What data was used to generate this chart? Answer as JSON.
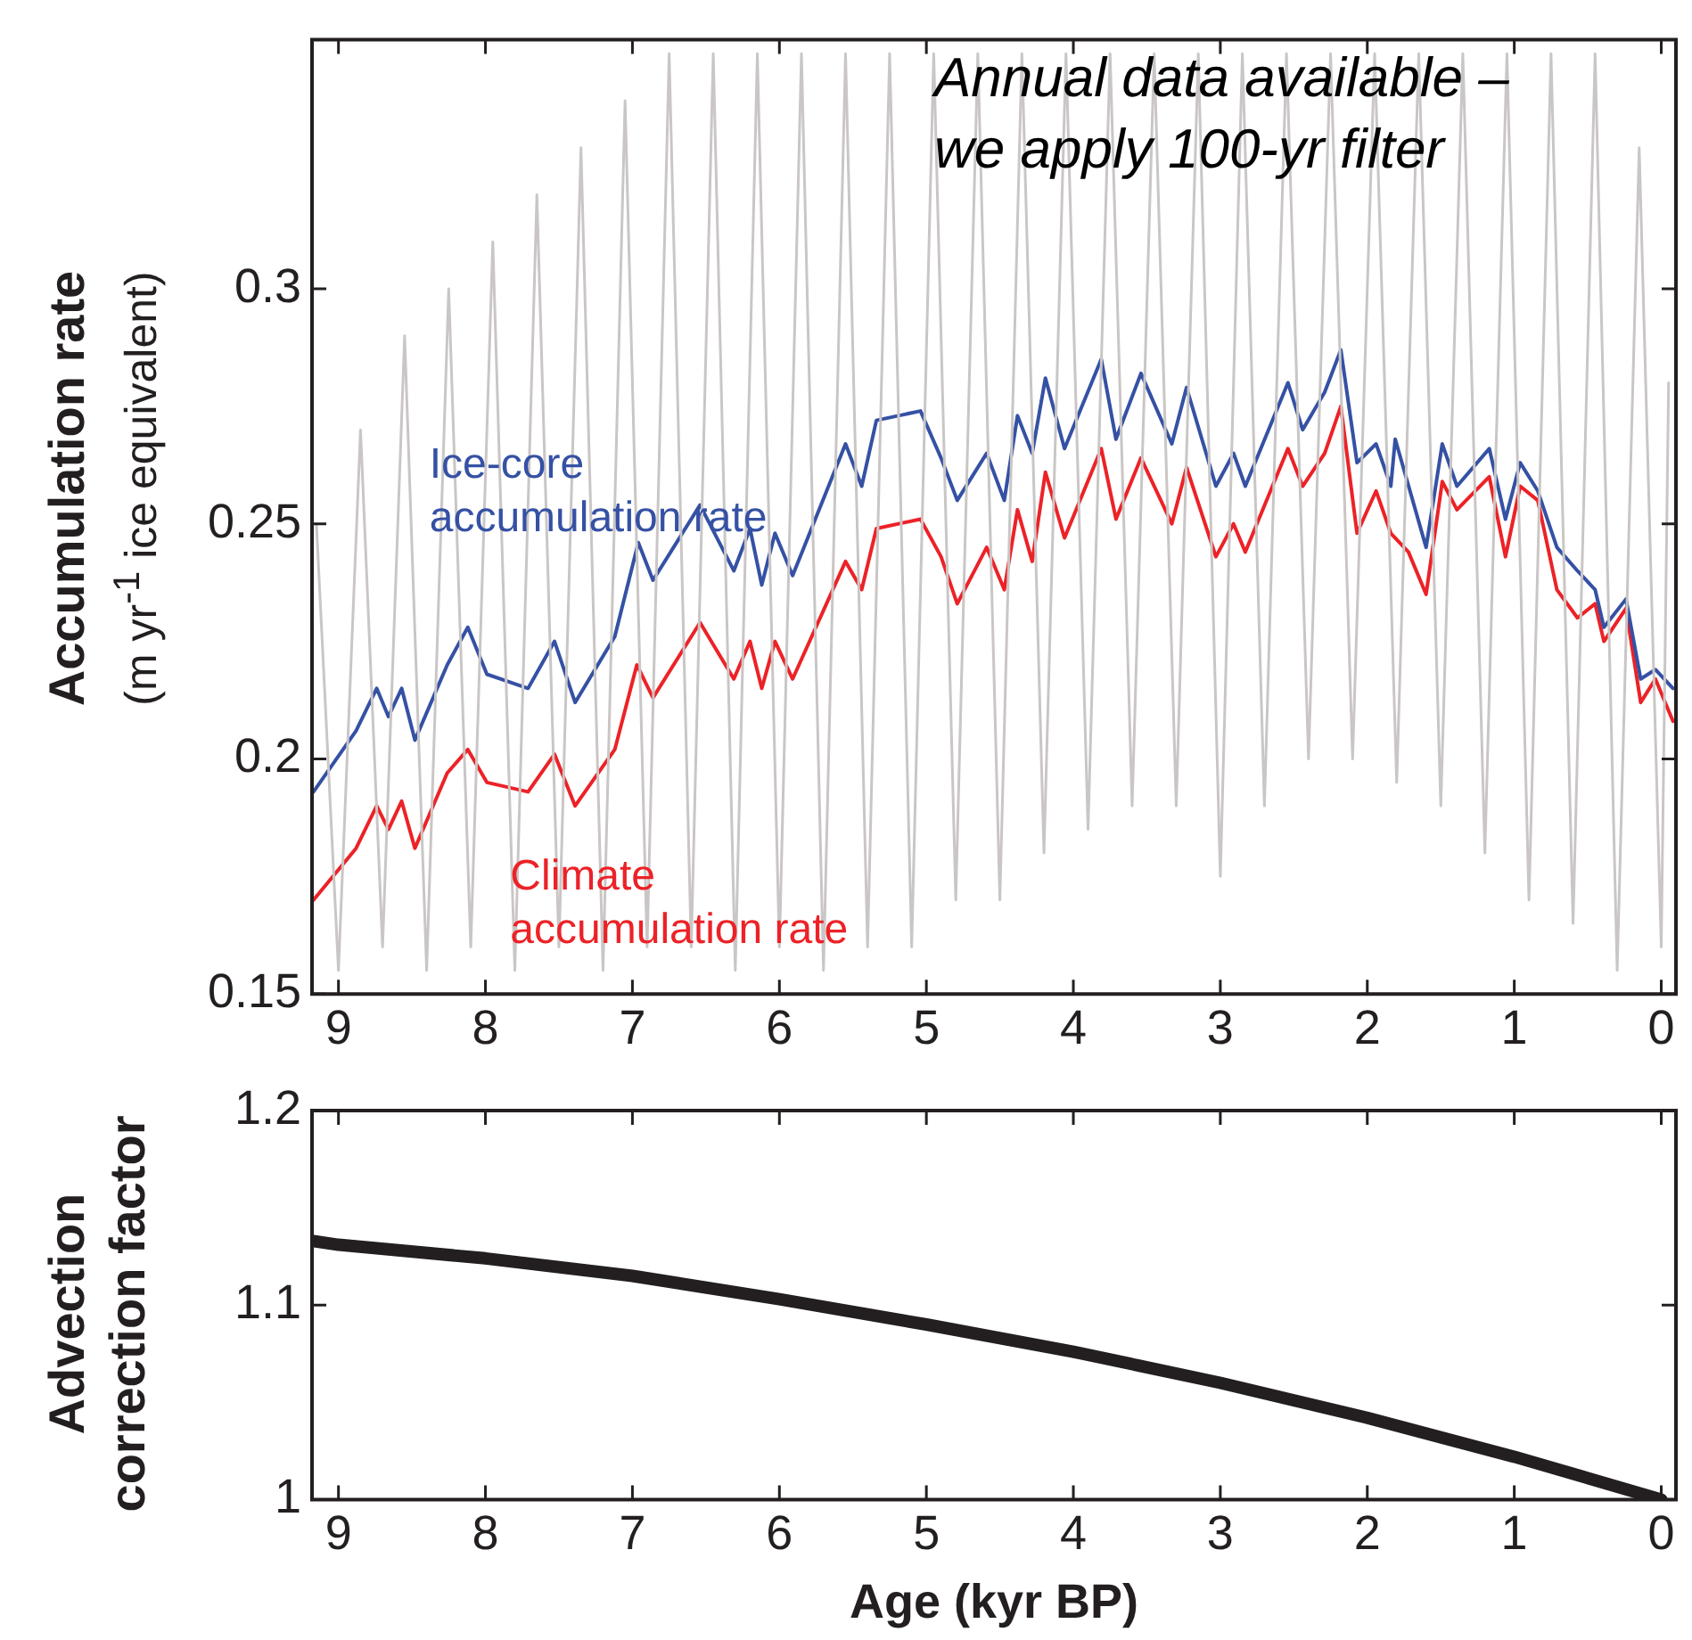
{
  "chart_data": [
    {
      "type": "line",
      "ylabel": "Accumulation rate\n(m yr$^{-1}$ ice equivalent)",
      "annotations": [
        "Annual data available –\nwe apply 100-yr filter"
      ],
      "xlim": [
        9.18,
        -0.1
      ],
      "xticks": [
        9,
        8,
        7,
        6,
        5,
        4,
        3,
        2,
        1,
        0
      ],
      "ylim": [
        0.15,
        0.353
      ],
      "yticks": [
        0.15,
        {
          "value": 0.2,
          "label": "0.2"
        },
        0.25,
        {
          "value": 0.3,
          "label": "0.3"
        }
      ],
      "marker": "none",
      "series": [
        {
          "color": "#cac6c5",
          "x": [
            9.15,
            9.0,
            8.85,
            8.7,
            8.55,
            8.4,
            8.25,
            8.1,
            7.95,
            7.8,
            7.65,
            7.5,
            7.35,
            7.2,
            7.05,
            6.9,
            6.75,
            6.6,
            6.45,
            6.3,
            6.15,
            6.0,
            5.85,
            5.7,
            5.55,
            5.4,
            5.25,
            5.1,
            4.95,
            4.8,
            4.65,
            4.5,
            4.35,
            4.2,
            4.05,
            3.9,
            3.75,
            3.6,
            3.45,
            3.3,
            3.15,
            3.0,
            2.85,
            2.7,
            2.55,
            2.4,
            2.25,
            2.1,
            1.95,
            1.8,
            1.65,
            1.5,
            1.35,
            1.2,
            1.05,
            0.9,
            0.75,
            0.6,
            0.45,
            0.3,
            0.15,
            0.0,
            -0.05
          ],
          "values": [
            0.25,
            0.155,
            0.27,
            0.16,
            0.29,
            0.155,
            0.3,
            0.16,
            0.31,
            0.155,
            0.32,
            0.16,
            0.33,
            0.155,
            0.34,
            0.16,
            0.35,
            0.16,
            0.35,
            0.155,
            0.35,
            0.16,
            0.35,
            0.155,
            0.35,
            0.16,
            0.35,
            0.16,
            0.35,
            0.17,
            0.35,
            0.17,
            0.35,
            0.18,
            0.35,
            0.185,
            0.35,
            0.19,
            0.35,
            0.19,
            0.35,
            0.175,
            0.35,
            0.19,
            0.35,
            0.2,
            0.35,
            0.2,
            0.35,
            0.195,
            0.35,
            0.19,
            0.35,
            0.18,
            0.35,
            0.17,
            0.35,
            0.165,
            0.35,
            0.155,
            0.33,
            0.16,
            0.28
          ]
        },
        {
          "name": "Ice-core accumulation rate",
          "color": "#3551a4",
          "x": [
            9.17,
            8.88,
            8.74,
            8.66,
            8.57,
            8.48,
            8.26,
            8.12,
            7.99,
            7.71,
            7.53,
            7.39,
            7.12,
            6.96,
            6.86,
            6.54,
            6.31,
            6.2,
            6.12,
            6.03,
            5.91,
            5.55,
            5.44,
            5.34,
            5.04,
            4.9,
            4.79,
            4.59,
            4.47,
            4.38,
            4.28,
            4.19,
            4.06,
            3.81,
            3.71,
            3.54,
            3.33,
            3.23,
            3.03,
            2.91,
            2.83,
            2.54,
            2.44,
            2.29,
            2.18,
            2.07,
            1.94,
            1.84,
            1.81,
            1.6,
            1.49,
            1.39,
            1.17,
            1.06,
            0.96,
            0.84,
            0.71,
            0.57,
            0.45,
            0.39,
            0.24,
            0.14,
            0.04,
            -0.08
          ],
          "values": [
            0.193,
            0.206,
            0.215,
            0.209,
            0.215,
            0.204,
            0.22,
            0.228,
            0.218,
            0.215,
            0.225,
            0.212,
            0.226,
            0.246,
            0.238,
            0.254,
            0.24,
            0.249,
            0.237,
            0.248,
            0.239,
            0.267,
            0.258,
            0.272,
            0.274,
            0.264,
            0.255,
            0.265,
            0.255,
            0.273,
            0.265,
            0.281,
            0.266,
            0.285,
            0.268,
            0.282,
            0.267,
            0.279,
            0.258,
            0.265,
            0.258,
            0.28,
            0.27,
            0.278,
            0.287,
            0.263,
            0.267,
            0.258,
            0.268,
            0.245,
            0.267,
            0.258,
            0.266,
            0.251,
            0.263,
            0.257,
            0.245,
            0.24,
            0.236,
            0.228,
            0.234,
            0.217,
            0.219,
            0.215
          ]
        },
        {
          "name": "Climate accumulation rate",
          "color": "#ec2227",
          "x": [
            9.17,
            8.88,
            8.74,
            8.66,
            8.57,
            8.48,
            8.26,
            8.12,
            7.99,
            7.71,
            7.53,
            7.39,
            7.12,
            6.97,
            6.86,
            6.54,
            6.31,
            6.2,
            6.12,
            6.03,
            5.91,
            5.55,
            5.44,
            5.34,
            5.04,
            4.9,
            4.79,
            4.59,
            4.47,
            4.38,
            4.28,
            4.19,
            4.06,
            3.81,
            3.71,
            3.54,
            3.33,
            3.23,
            3.03,
            2.91,
            2.83,
            2.54,
            2.44,
            2.29,
            2.18,
            2.07,
            1.94,
            1.84,
            1.72,
            1.6,
            1.49,
            1.39,
            1.17,
            1.06,
            0.96,
            0.84,
            0.71,
            0.57,
            0.45,
            0.39,
            0.24,
            0.14,
            0.04,
            -0.08
          ],
          "values": [
            0.17,
            0.181,
            0.19,
            0.185,
            0.191,
            0.181,
            0.197,
            0.202,
            0.195,
            0.193,
            0.201,
            0.19,
            0.202,
            0.22,
            0.213,
            0.229,
            0.217,
            0.225,
            0.215,
            0.225,
            0.217,
            0.242,
            0.236,
            0.249,
            0.251,
            0.243,
            0.233,
            0.245,
            0.236,
            0.253,
            0.242,
            0.261,
            0.247,
            0.266,
            0.251,
            0.264,
            0.25,
            0.262,
            0.243,
            0.25,
            0.244,
            0.266,
            0.258,
            0.265,
            0.275,
            0.248,
            0.257,
            0.248,
            0.244,
            0.235,
            0.259,
            0.253,
            0.26,
            0.243,
            0.258,
            0.255,
            0.236,
            0.23,
            0.233,
            0.225,
            0.232,
            0.212,
            0.217,
            0.208
          ]
        }
      ]
    },
    {
      "type": "line",
      "xlabel": "Age (kyr BP)",
      "ylabel": "Advection\ncorrection factor",
      "xlim": [
        9.18,
        -0.1
      ],
      "xticks": [
        9,
        8,
        7,
        6,
        5,
        4,
        3,
        2,
        1,
        0
      ],
      "ylim": [
        1,
        1.2
      ],
      "yticks": [
        1,
        {
          "value": 1.1,
          "label": "1.1"
        },
        {
          "value": 1.2,
          "label": "1.2"
        }
      ],
      "marker": "none",
      "series": [
        {
          "color": "#231f20",
          "x": [
            9.18,
            9,
            8,
            7,
            6,
            5,
            4,
            3,
            2,
            1,
            0
          ],
          "values": [
            1.133,
            1.131,
            1.124,
            1.115,
            1.103,
            1.09,
            1.076,
            1.06,
            1.042,
            1.022,
            1.0
          ]
        }
      ]
    }
  ]
}
